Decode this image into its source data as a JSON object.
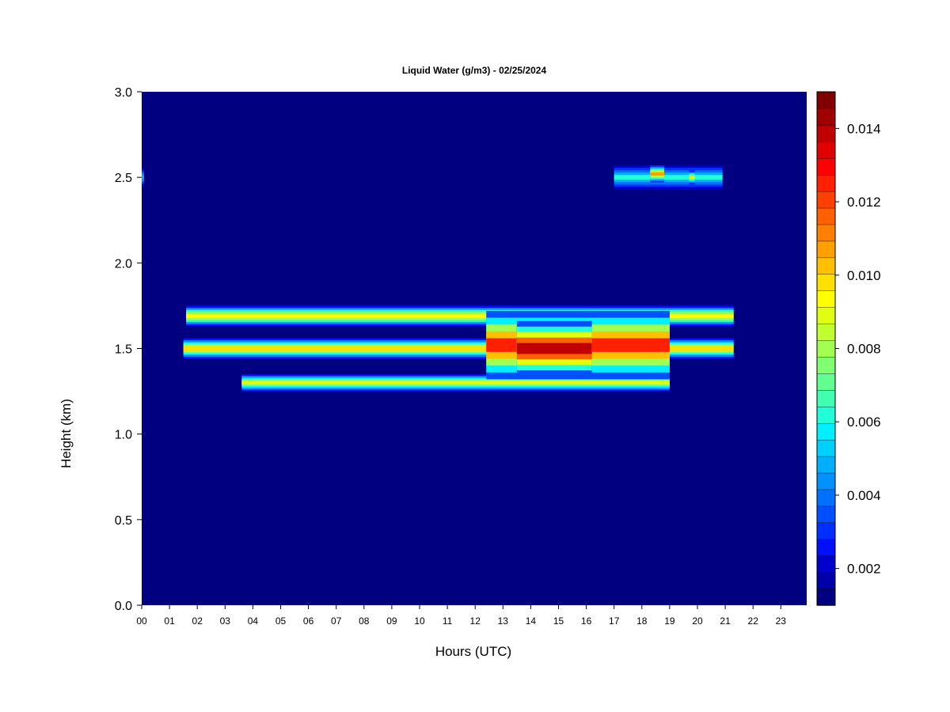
{
  "chart_data": {
    "type": "heatmap",
    "title": "Liquid Water (g/m3) - 02/25/2024",
    "xlabel": "Hours (UTC)",
    "ylabel": "Height (km)",
    "xlim": [
      0,
      24
    ],
    "ylim": [
      0,
      3
    ],
    "x_ticks": [
      "00",
      "01",
      "02",
      "03",
      "04",
      "05",
      "06",
      "07",
      "08",
      "09",
      "10",
      "11",
      "12",
      "13",
      "14",
      "15",
      "16",
      "17",
      "18",
      "19",
      "20",
      "21",
      "22",
      "23"
    ],
    "y_ticks": [
      "0.0",
      "0.5",
      "1.0",
      "1.5",
      "2.0",
      "2.5",
      "3.0"
    ],
    "colorbar": {
      "range": [
        0.001,
        0.015
      ],
      "ticks": [
        "0.002",
        "0.004",
        "0.006",
        "0.008",
        "0.010",
        "0.012",
        "0.014"
      ],
      "colors": [
        "#000080",
        "#0000a8",
        "#0000cd",
        "#0010ff",
        "#0030ff",
        "#0050ff",
        "#0070ff",
        "#0090ff",
        "#00b0ff",
        "#00d0ff",
        "#00f0ff",
        "#20ffd8",
        "#40ffb0",
        "#60ff90",
        "#80ff70",
        "#a0ff50",
        "#c0ff30",
        "#e0ff10",
        "#ffff00",
        "#ffe000",
        "#ffc000",
        "#ffa000",
        "#ff8000",
        "#ff6000",
        "#ff4000",
        "#ff2000",
        "#ff0000",
        "#e00000",
        "#c00000",
        "#a00000",
        "#800000"
      ]
    },
    "background_value": 0.0,
    "cloud_layers": [
      {
        "x_start": 1.6,
        "x_end": 21.3,
        "y_center": 1.69,
        "thickness": 0.12,
        "value": 0.0095
      },
      {
        "x_start": 1.5,
        "x_end": 21.3,
        "y_center": 1.5,
        "thickness": 0.12,
        "value": 0.0098
      },
      {
        "x_start": 3.6,
        "x_end": 19.0,
        "y_center": 1.3,
        "thickness": 0.1,
        "value": 0.009
      },
      {
        "x_start": 12.4,
        "x_end": 19.0,
        "y_center": 1.52,
        "thickness": 0.4,
        "value": 0.0125
      },
      {
        "x_start": 13.5,
        "x_end": 16.2,
        "y_center": 1.5,
        "thickness": 0.32,
        "value": 0.014
      },
      {
        "x_start": 17.0,
        "x_end": 20.9,
        "y_center": 2.5,
        "thickness": 0.14,
        "value": 0.006
      },
      {
        "x_start": 18.3,
        "x_end": 18.8,
        "y_center": 2.52,
        "thickness": 0.1,
        "value": 0.0105
      },
      {
        "x_start": 19.7,
        "x_end": 19.9,
        "y_center": 2.5,
        "thickness": 0.08,
        "value": 0.009
      },
      {
        "x_start": 0.0,
        "x_end": 0.08,
        "y_center": 2.5,
        "thickness": 0.12,
        "value": 0.005
      }
    ]
  }
}
